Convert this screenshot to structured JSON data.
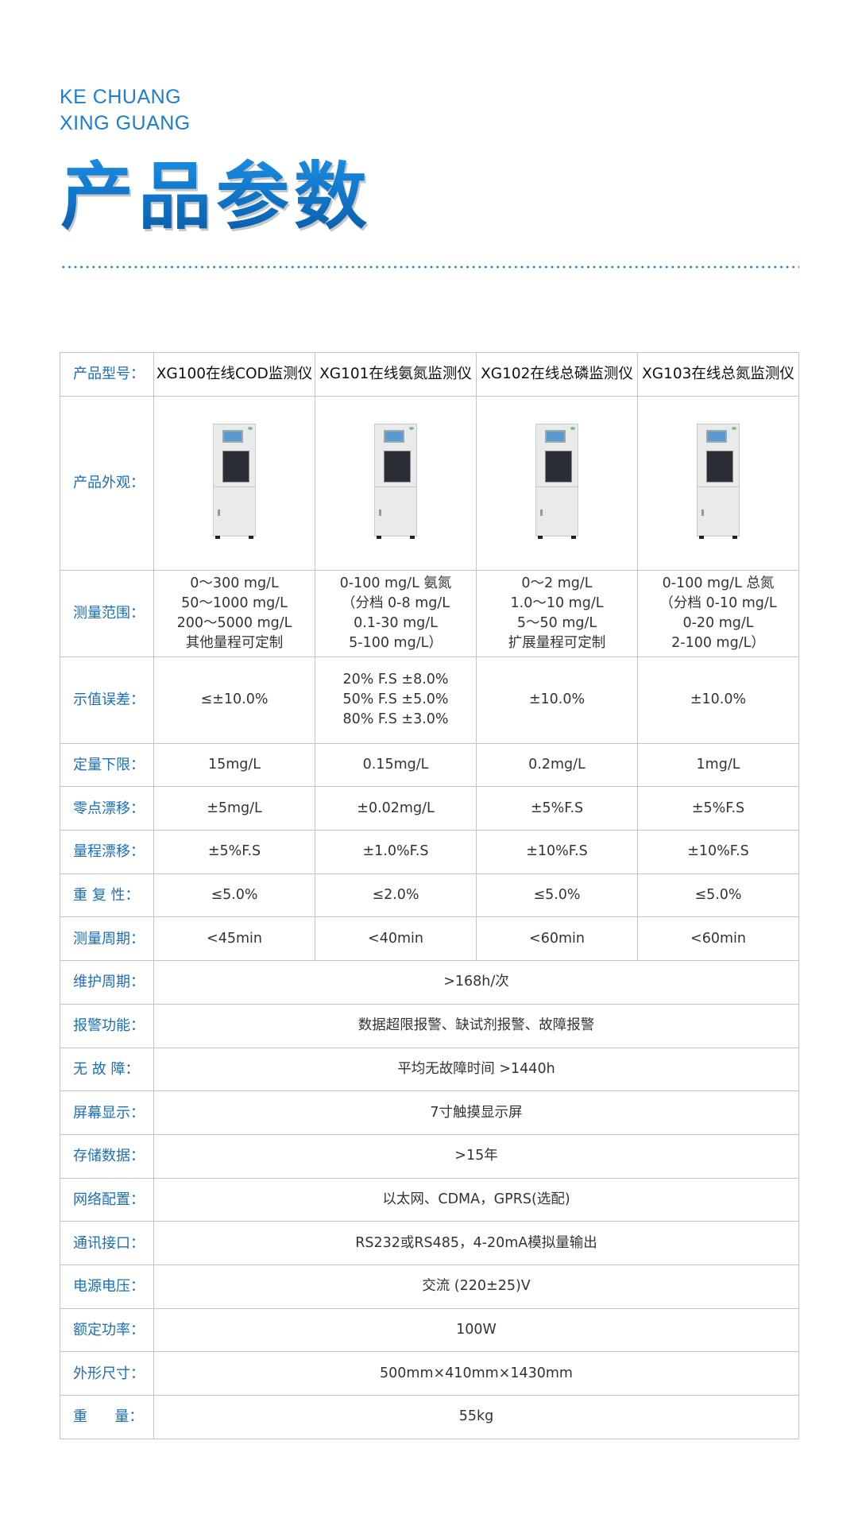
{
  "brand": {
    "line1": "KE CHUANG",
    "line2": "XING GUANG"
  },
  "title": "产品参数",
  "colors": {
    "accent": "#1a7fd0",
    "label": "#1a6fb8",
    "border": "#c4c4c4"
  },
  "table": {
    "model_label": "产品型号：",
    "models": [
      "XG100在线COD监测仪",
      "XG101在线氨氮监测仪",
      "XG102在线总磷监测仪",
      "XG103在线总氮监测仪"
    ],
    "appearance_label": "产品外观：",
    "range": {
      "label": "测量范围：",
      "values": [
        "0～300 mg/L\n50～1000 mg/L\n200～5000 mg/L\n其他量程可定制",
        "0-100 mg/L 氨氮\n（分档 0-8 mg/L\n0.1-30 mg/L\n5-100 mg/L）",
        "0～2 mg/L\n1.0～10 mg/L\n5～50 mg/L\n扩展量程可定制",
        "0-100 mg/L 总氮\n（分档 0-10 mg/L\n0-20 mg/L\n2-100 mg/L）"
      ]
    },
    "error": {
      "label": "示值误差：",
      "values": [
        "≤±10.0%",
        "20% F.S ±8.0%\n50% F.S ±5.0%\n80% F.S ±3.0%",
        "±10.0%",
        "±10.0%"
      ]
    },
    "rows4": [
      {
        "label": "定量下限：",
        "values": [
          "15mg/L",
          "0.15mg/L",
          "0.2mg/L",
          "1mg/L"
        ]
      },
      {
        "label": "零点漂移：",
        "values": [
          "±5mg/L",
          "±0.02mg/L",
          "±5%F.S",
          "±5%F.S"
        ]
      },
      {
        "label": "量程漂移：",
        "values": [
          "±5%F.S",
          "±1.0%F.S",
          "±10%F.S",
          "±10%F.S"
        ]
      },
      {
        "label": "重 复 性：",
        "values": [
          "≤5.0%",
          "≤2.0%",
          "≤5.0%",
          "≤5.0%"
        ]
      },
      {
        "label": "测量周期：",
        "values": [
          "<45min",
          "<40min",
          "<60min",
          "<60min"
        ]
      }
    ],
    "rows1": [
      {
        "label": "维护周期：",
        "value": ">168h/次"
      },
      {
        "label": "报警功能：",
        "value": "数据超限报警、缺试剂报警、故障报警"
      },
      {
        "label": "无 故 障：",
        "value": "平均无故障时间 >1440h"
      },
      {
        "label": "屏幕显示：",
        "value": "7寸触摸显示屏"
      },
      {
        "label": "存储数据：",
        "value": ">15年"
      },
      {
        "label": "网络配置：",
        "value": "以太网、CDMA，GPRS(选配)"
      },
      {
        "label": "通讯接口：",
        "value": "RS232或RS485，4-20mA模拟量输出"
      },
      {
        "label": "电源电压：",
        "value": "交流 (220±25)V"
      },
      {
        "label": "额定功率：",
        "value": "100W"
      },
      {
        "label": "外形尺寸：",
        "value": "500mm×410mm×1430mm"
      },
      {
        "label": "重      量：",
        "value": "55kg"
      }
    ]
  }
}
